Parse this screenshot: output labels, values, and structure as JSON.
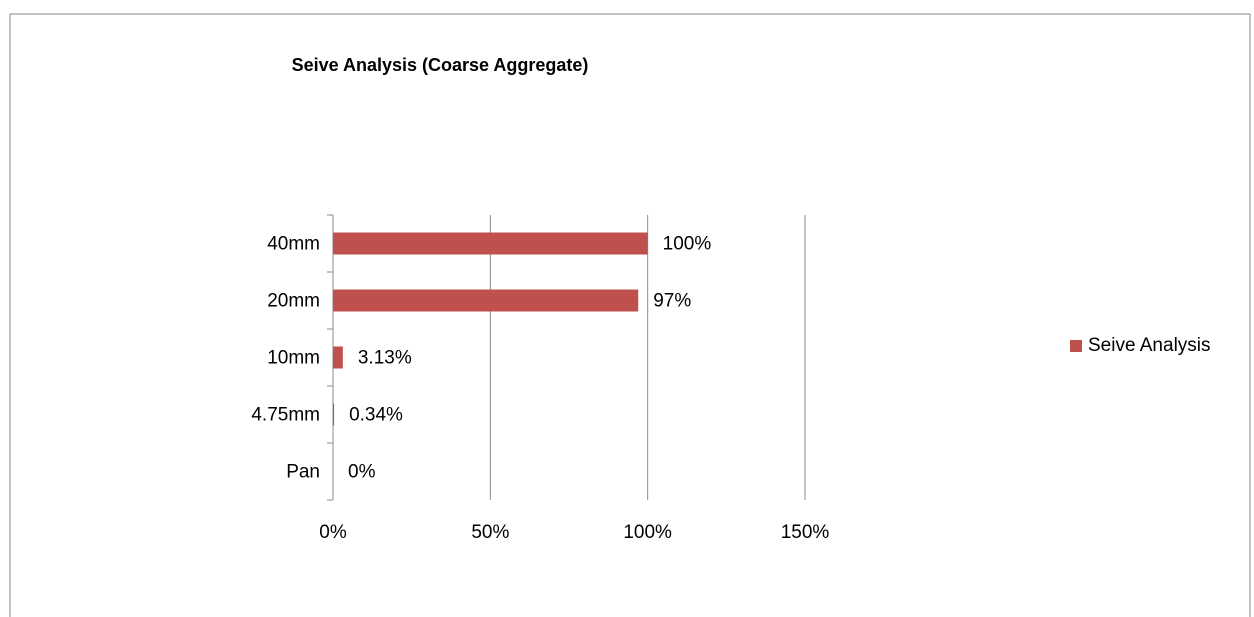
{
  "chart_data": {
    "type": "bar",
    "orientation": "horizontal",
    "title": "Seive Analysis (Coarse Aggregate)",
    "categories": [
      "40mm",
      "20mm",
      "10mm",
      "4.75mm",
      "Pan"
    ],
    "series": [
      {
        "name": "Seive Analysis",
        "color": "#c0504d",
        "values": [
          100,
          97,
          3.13,
          0.34,
          0
        ],
        "value_labels": [
          "100%",
          "97%",
          "3.13%",
          "0.34%",
          "0%"
        ]
      }
    ],
    "xlim": [
      0,
      150
    ],
    "xticks": [
      {
        "value": 0,
        "label": "0%"
      },
      {
        "value": 50,
        "label": "50%"
      },
      {
        "value": 100,
        "label": "100%"
      },
      {
        "value": 150,
        "label": "150%"
      }
    ],
    "grid": true,
    "legend": "right"
  }
}
